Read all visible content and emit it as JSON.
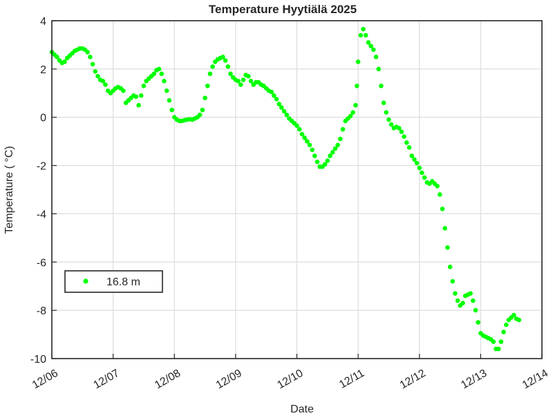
{
  "chart_data": {
    "type": "scatter",
    "title": "Temperature Hyytiälä 2025",
    "xlabel": "Date",
    "ylabel": "Temperature (   °C)",
    "x_ticks": [
      "12/06",
      "12/07",
      "12/08",
      "12/09",
      "12/10",
      "12/11",
      "12/12",
      "12/13",
      "12/14"
    ],
    "y_ticks": [
      "-10",
      "-8",
      "-6",
      "-4",
      "-2",
      "0",
      "2",
      "4"
    ],
    "xlim": [
      "12/06",
      "12/14"
    ],
    "ylim": [
      -10,
      4
    ],
    "grid": true,
    "legend_position": "lower-left",
    "marker_color": "#00ff00",
    "series": [
      {
        "name": "16.8 m",
        "points": [
          [
            "12/06 00:00",
            2.7
          ],
          [
            "12/06 01:00",
            2.6
          ],
          [
            "12/06 02:00",
            2.5
          ],
          [
            "12/06 03:00",
            2.35
          ],
          [
            "12/06 04:00",
            2.25
          ],
          [
            "12/06 05:00",
            2.3
          ],
          [
            "12/06 06:00",
            2.45
          ],
          [
            "12/06 07:00",
            2.55
          ],
          [
            "12/06 08:00",
            2.65
          ],
          [
            "12/06 09:00",
            2.75
          ],
          [
            "12/06 10:00",
            2.8
          ],
          [
            "12/06 11:00",
            2.85
          ],
          [
            "12/06 12:00",
            2.85
          ],
          [
            "12/06 13:00",
            2.8
          ],
          [
            "12/06 14:00",
            2.7
          ],
          [
            "12/06 15:00",
            2.5
          ],
          [
            "12/06 16:00",
            2.2
          ],
          [
            "12/06 17:00",
            1.9
          ],
          [
            "12/06 18:00",
            1.7
          ],
          [
            "12/06 19:00",
            1.55
          ],
          [
            "12/06 20:00",
            1.5
          ],
          [
            "12/06 21:00",
            1.35
          ],
          [
            "12/06 22:00",
            1.1
          ],
          [
            "12/06 23:00",
            1.0
          ],
          [
            "12/07 00:00",
            1.1
          ],
          [
            "12/07 01:00",
            1.2
          ],
          [
            "12/07 02:00",
            1.25
          ],
          [
            "12/07 03:00",
            1.2
          ],
          [
            "12/07 04:00",
            1.1
          ],
          [
            "12/07 05:00",
            0.6
          ],
          [
            "12/07 06:00",
            0.7
          ],
          [
            "12/07 07:00",
            0.8
          ],
          [
            "12/07 08:00",
            0.9
          ],
          [
            "12/07 09:00",
            0.85
          ],
          [
            "12/07 10:00",
            0.5
          ],
          [
            "12/07 11:00",
            0.9
          ],
          [
            "12/07 12:00",
            1.3
          ],
          [
            "12/07 13:00",
            1.5
          ],
          [
            "12/07 14:00",
            1.6
          ],
          [
            "12/07 15:00",
            1.7
          ],
          [
            "12/07 16:00",
            1.8
          ],
          [
            "12/07 17:00",
            1.95
          ],
          [
            "12/07 18:00",
            2.0
          ],
          [
            "12/07 19:00",
            1.8
          ],
          [
            "12/07 20:00",
            1.5
          ],
          [
            "12/07 21:00",
            1.1
          ],
          [
            "12/07 22:00",
            0.7
          ],
          [
            "12/07 23:00",
            0.3
          ],
          [
            "12/08 00:00",
            0.0
          ],
          [
            "12/08 01:00",
            -0.1
          ],
          [
            "12/08 02:00",
            -0.15
          ],
          [
            "12/08 03:00",
            -0.15
          ],
          [
            "12/08 04:00",
            -0.12
          ],
          [
            "12/08 05:00",
            -0.1
          ],
          [
            "12/08 06:00",
            -0.08
          ],
          [
            "12/08 07:00",
            -0.1
          ],
          [
            "12/08 08:00",
            -0.05
          ],
          [
            "12/08 09:00",
            0.0
          ],
          [
            "12/08 10:00",
            0.1
          ],
          [
            "12/08 11:00",
            0.3
          ],
          [
            "12/08 12:00",
            0.8
          ],
          [
            "12/08 13:00",
            1.3
          ],
          [
            "12/08 14:00",
            1.8
          ],
          [
            "12/08 15:00",
            2.1
          ],
          [
            "12/08 16:00",
            2.3
          ],
          [
            "12/08 17:00",
            2.4
          ],
          [
            "12/08 18:00",
            2.45
          ],
          [
            "12/08 19:00",
            2.5
          ],
          [
            "12/08 20:00",
            2.35
          ],
          [
            "12/08 21:00",
            2.1
          ],
          [
            "12/08 22:00",
            1.8
          ],
          [
            "12/08 23:00",
            1.65
          ],
          [
            "12/09 00:00",
            1.55
          ],
          [
            "12/09 01:00",
            1.5
          ],
          [
            "12/09 02:00",
            1.35
          ],
          [
            "12/09 03:00",
            1.55
          ],
          [
            "12/09 04:00",
            1.75
          ],
          [
            "12/09 05:00",
            1.7
          ],
          [
            "12/09 06:00",
            1.5
          ],
          [
            "12/09 07:00",
            1.35
          ],
          [
            "12/09 08:00",
            1.45
          ],
          [
            "12/09 09:00",
            1.45
          ],
          [
            "12/09 10:00",
            1.35
          ],
          [
            "12/09 11:00",
            1.3
          ],
          [
            "12/09 12:00",
            1.2
          ],
          [
            "12/09 13:00",
            1.1
          ],
          [
            "12/09 14:00",
            1.05
          ],
          [
            "12/09 15:00",
            0.9
          ],
          [
            "12/09 16:00",
            0.75
          ],
          [
            "12/09 17:00",
            0.55
          ],
          [
            "12/09 18:00",
            0.4
          ],
          [
            "12/09 19:00",
            0.25
          ],
          [
            "12/09 20:00",
            0.1
          ],
          [
            "12/09 21:00",
            -0.05
          ],
          [
            "12/09 22:00",
            -0.15
          ],
          [
            "12/09 23:00",
            -0.25
          ],
          [
            "12/10 00:00",
            -0.35
          ],
          [
            "12/10 01:00",
            -0.5
          ],
          [
            "12/10 02:00",
            -0.7
          ],
          [
            "12/10 03:00",
            -0.85
          ],
          [
            "12/10 04:00",
            -1.0
          ],
          [
            "12/10 05:00",
            -1.15
          ],
          [
            "12/10 06:00",
            -1.35
          ],
          [
            "12/10 07:00",
            -1.6
          ],
          [
            "12/10 08:00",
            -1.85
          ],
          [
            "12/10 09:00",
            -2.05
          ],
          [
            "12/10 10:00",
            -2.05
          ],
          [
            "12/10 11:00",
            -1.95
          ],
          [
            "12/10 12:00",
            -1.8
          ],
          [
            "12/10 13:00",
            -1.6
          ],
          [
            "12/10 14:00",
            -1.45
          ],
          [
            "12/10 15:00",
            -1.3
          ],
          [
            "12/10 16:00",
            -1.15
          ],
          [
            "12/10 17:00",
            -0.9
          ],
          [
            "12/10 18:00",
            -0.5
          ],
          [
            "12/10 19:00",
            -0.15
          ],
          [
            "12/10 20:00",
            -0.05
          ],
          [
            "12/10 21:00",
            0.05
          ],
          [
            "12/10 22:00",
            0.2
          ],
          [
            "12/10 23:00",
            0.5
          ],
          [
            "12/10 23:30",
            1.3
          ],
          [
            "12/11 00:00",
            2.3
          ],
          [
            "12/11 01:00",
            3.4
          ],
          [
            "12/11 02:00",
            3.65
          ],
          [
            "12/11 03:00",
            3.4
          ],
          [
            "12/11 04:00",
            3.1
          ],
          [
            "12/11 05:00",
            2.95
          ],
          [
            "12/11 06:00",
            2.8
          ],
          [
            "12/11 07:00",
            2.5
          ],
          [
            "12/11 08:00",
            2.0
          ],
          [
            "12/11 09:00",
            1.3
          ],
          [
            "12/11 10:00",
            0.6
          ],
          [
            "12/11 11:00",
            0.2
          ],
          [
            "12/11 12:00",
            -0.1
          ],
          [
            "12/11 13:00",
            -0.3
          ],
          [
            "12/11 14:00",
            -0.45
          ],
          [
            "12/11 15:00",
            -0.4
          ],
          [
            "12/11 16:00",
            -0.45
          ],
          [
            "12/11 17:00",
            -0.6
          ],
          [
            "12/11 18:00",
            -0.8
          ],
          [
            "12/11 19:00",
            -1.05
          ],
          [
            "12/11 20:00",
            -1.25
          ],
          [
            "12/11 21:00",
            -1.6
          ],
          [
            "12/11 22:00",
            -1.75
          ],
          [
            "12/11 23:00",
            -1.9
          ],
          [
            "12/12 00:00",
            -2.1
          ],
          [
            "12/12 01:00",
            -2.3
          ],
          [
            "12/12 02:00",
            -2.5
          ],
          [
            "12/12 03:00",
            -2.7
          ],
          [
            "12/12 04:00",
            -2.75
          ],
          [
            "12/12 05:00",
            -2.65
          ],
          [
            "12/12 06:00",
            -2.75
          ],
          [
            "12/12 07:00",
            -2.85
          ],
          [
            "12/12 08:00",
            -3.2
          ],
          [
            "12/12 09:00",
            -3.8
          ],
          [
            "12/12 10:00",
            -4.6
          ],
          [
            "12/12 11:00",
            -5.4
          ],
          [
            "12/12 12:00",
            -6.2
          ],
          [
            "12/12 13:00",
            -6.8
          ],
          [
            "12/12 14:00",
            -7.3
          ],
          [
            "12/12 15:00",
            -7.6
          ],
          [
            "12/12 16:00",
            -7.8
          ],
          [
            "12/12 17:00",
            -7.7
          ],
          [
            "12/12 18:00",
            -7.4
          ],
          [
            "12/12 19:00",
            -7.35
          ],
          [
            "12/12 20:00",
            -7.3
          ],
          [
            "12/12 21:00",
            -7.6
          ],
          [
            "12/12 22:00",
            -8.0
          ],
          [
            "12/12 23:00",
            -8.5
          ],
          [
            "12/13 00:00",
            -8.95
          ],
          [
            "12/13 01:00",
            -9.05
          ],
          [
            "12/13 02:00",
            -9.1
          ],
          [
            "12/13 03:00",
            -9.15
          ],
          [
            "12/13 04:00",
            -9.2
          ],
          [
            "12/13 05:00",
            -9.3
          ],
          [
            "12/13 06:00",
            -9.6
          ],
          [
            "12/13 07:00",
            -9.6
          ],
          [
            "12/13 08:00",
            -9.3
          ],
          [
            "12/13 09:00",
            -8.9
          ],
          [
            "12/13 10:00",
            -8.6
          ],
          [
            "12/13 11:00",
            -8.4
          ],
          [
            "12/13 12:00",
            -8.3
          ],
          [
            "12/13 13:00",
            -8.2
          ],
          [
            "12/13 14:00",
            -8.35
          ],
          [
            "12/13 15:00",
            -8.4
          ]
        ]
      }
    ]
  }
}
